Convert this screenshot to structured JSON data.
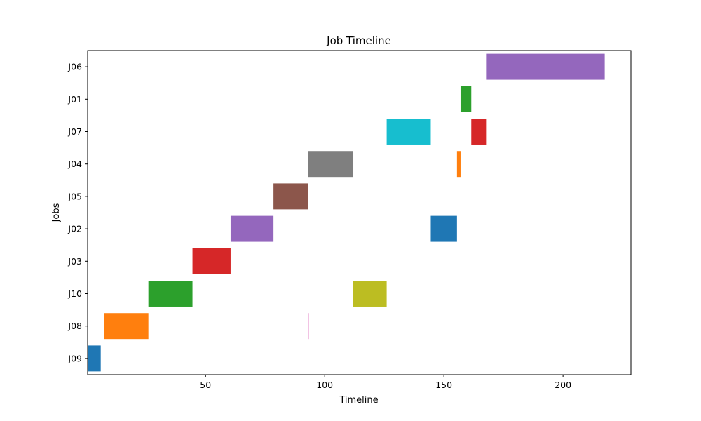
{
  "chart_data": {
    "type": "bar",
    "orientation": "horizontal-gantt",
    "title": "Job Timeline",
    "xlabel": "Timeline",
    "ylabel": "Jobs",
    "xlim": [
      0.5,
      228.5
    ],
    "xticks": [
      50,
      100,
      150,
      200
    ],
    "categories": [
      "J09",
      "J08",
      "J10",
      "J03",
      "J02",
      "J05",
      "J04",
      "J07",
      "J01",
      "J06"
    ],
    "grid": false,
    "legend": "none",
    "bars": [
      {
        "job": "J09",
        "start": 0.5,
        "end": 6.0,
        "color": "#1f77b4"
      },
      {
        "job": "J08",
        "start": 7.5,
        "end": 26.0,
        "color": "#ff7f0e"
      },
      {
        "job": "J10",
        "start": 26.0,
        "end": 44.5,
        "color": "#2ca02c"
      },
      {
        "job": "J03",
        "start": 44.5,
        "end": 60.5,
        "color": "#d62728"
      },
      {
        "job": "J02",
        "start": 60.5,
        "end": 78.5,
        "color": "#9467bd"
      },
      {
        "job": "J05",
        "start": 78.5,
        "end": 93.0,
        "color": "#8c564b"
      },
      {
        "job": "J08",
        "start": 93.0,
        "end": 93.3,
        "color": "#e377c2"
      },
      {
        "job": "J04",
        "start": 93.0,
        "end": 112.0,
        "color": "#7f7f7f"
      },
      {
        "job": "J10",
        "start": 112.0,
        "end": 126.0,
        "color": "#bcbd22"
      },
      {
        "job": "J07",
        "start": 126.0,
        "end": 144.5,
        "color": "#17becf"
      },
      {
        "job": "J02",
        "start": 144.5,
        "end": 155.5,
        "color": "#1f77b4"
      },
      {
        "job": "J04",
        "start": 155.5,
        "end": 157.0,
        "color": "#ff7f0e"
      },
      {
        "job": "J01",
        "start": 157.0,
        "end": 161.5,
        "color": "#2ca02c"
      },
      {
        "job": "J07",
        "start": 161.5,
        "end": 168.0,
        "color": "#d62728"
      },
      {
        "job": "J06",
        "start": 168.0,
        "end": 217.5,
        "color": "#9467bd"
      }
    ]
  }
}
